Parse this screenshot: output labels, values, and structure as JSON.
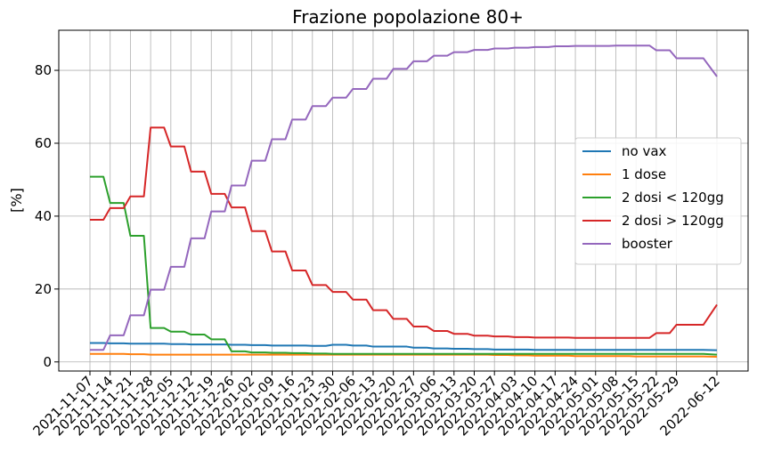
{
  "chart_data": {
    "type": "line",
    "title": "Frazione popolazione 80+",
    "xlabel": "",
    "ylabel": "[%]",
    "ylim": [
      -2.5,
      91
    ],
    "yticks": [
      0,
      20,
      40,
      60,
      80
    ],
    "grid": true,
    "legend_position": "center-right",
    "x": [
      "2021-11-07",
      "2021-11-14",
      "2021-11-21",
      "2021-11-28",
      "2021-12-05",
      "2021-12-12",
      "2021-12-19",
      "2021-12-26",
      "2022-01-02",
      "2022-01-09",
      "2022-01-16",
      "2022-01-23",
      "2022-01-30",
      "2022-02-06",
      "2022-02-13",
      "2022-02-20",
      "2022-02-27",
      "2022-03-06",
      "2022-03-13",
      "2022-03-20",
      "2022-03-27",
      "2022-04-03",
      "2022-04-10",
      "2022-04-17",
      "2022-04-24",
      "2022-05-01",
      "2022-05-08",
      "2022-05-15",
      "2022-05-22",
      "2022-05-29",
      "2022-06-12"
    ],
    "x_offsets": [
      0,
      7,
      14,
      21,
      28,
      35,
      42,
      49,
      56,
      63,
      70,
      77,
      84,
      91,
      98,
      105,
      112,
      119,
      126,
      133,
      140,
      147,
      154,
      161,
      168,
      175,
      182,
      189,
      196,
      203,
      217
    ],
    "series": [
      {
        "name": "no vax",
        "color": "#1f77b4",
        "values": [
          5.2,
          5.1,
          5.0,
          5.0,
          4.9,
          4.8,
          4.8,
          4.7,
          4.6,
          4.5,
          4.5,
          4.4,
          4.7,
          4.5,
          4.2,
          4.2,
          3.9,
          3.7,
          3.6,
          3.5,
          3.4,
          3.4,
          3.3,
          3.3,
          3.3,
          3.3,
          3.3,
          3.3,
          3.3,
          3.3,
          3.2
        ]
      },
      {
        "name": "1 dose",
        "color": "#ff7f0e",
        "values": [
          2.2,
          2.2,
          2.1,
          2.0,
          2.0,
          2.0,
          2.0,
          2.0,
          2.0,
          2.0,
          2.0,
          2.0,
          2.0,
          2.0,
          2.0,
          2.0,
          2.0,
          2.0,
          2.0,
          2.0,
          1.9,
          1.8,
          1.7,
          1.7,
          1.6,
          1.6,
          1.6,
          1.5,
          1.5,
          1.5,
          1.4
        ]
      },
      {
        "name": "2 dosi < 120gg",
        "color": "#2ca02c",
        "values": [
          50.8,
          43.6,
          34.6,
          9.3,
          8.3,
          7.5,
          6.2,
          2.9,
          2.6,
          2.5,
          2.4,
          2.3,
          2.2,
          2.2,
          2.2,
          2.2,
          2.2,
          2.2,
          2.2,
          2.2,
          2.2,
          2.2,
          2.2,
          2.2,
          2.2,
          2.2,
          2.2,
          2.2,
          2.2,
          2.2,
          2.0
        ]
      },
      {
        "name": "2 dosi > 120gg",
        "color": "#d62728",
        "values": [
          39.0,
          42.2,
          45.4,
          64.3,
          59.1,
          52.2,
          46.1,
          42.4,
          35.9,
          30.3,
          25.1,
          21.1,
          19.2,
          17.1,
          14.2,
          11.8,
          9.7,
          8.5,
          7.7,
          7.2,
          7.0,
          6.8,
          6.7,
          6.7,
          6.6,
          6.6,
          6.6,
          6.6,
          7.9,
          10.2,
          15.7
        ]
      },
      {
        "name": "booster",
        "color": "#9467bd",
        "values": [
          3.3,
          7.3,
          12.8,
          19.8,
          26.1,
          33.9,
          41.3,
          48.4,
          55.2,
          61.1,
          66.5,
          70.2,
          72.5,
          74.9,
          77.7,
          80.4,
          82.5,
          84.0,
          85.0,
          85.6,
          86.0,
          86.2,
          86.4,
          86.6,
          86.7,
          86.7,
          86.8,
          86.8,
          85.5,
          83.3,
          78.3
        ]
      }
    ]
  }
}
